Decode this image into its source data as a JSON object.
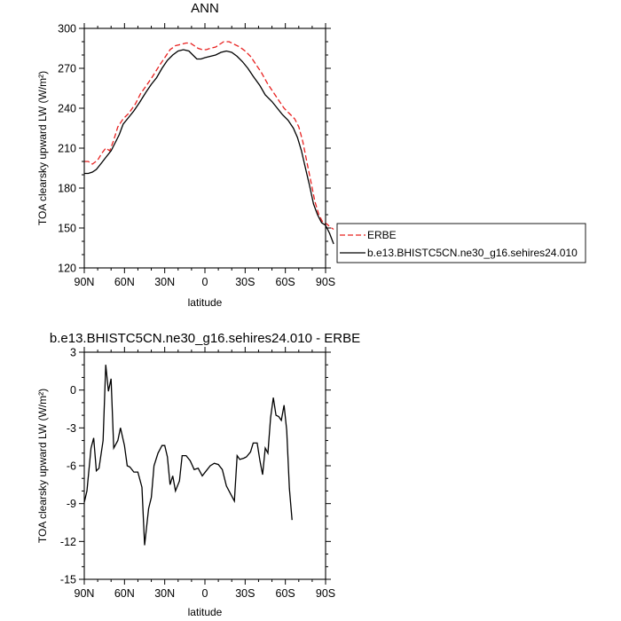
{
  "chart_data": [
    {
      "type": "line",
      "title": "ANN",
      "xlabel": "latitude",
      "ylabel": "TOA clearsky upward LW (W/m²)",
      "xlim": [
        -90,
        90
      ],
      "ylim": [
        120,
        300
      ],
      "x_tick_labels": [
        "90N",
        "60N",
        "30N",
        "0",
        "30S",
        "60S",
        "90S"
      ],
      "y_ticks": [
        120,
        150,
        180,
        210,
        240,
        270,
        300
      ],
      "legend_placement": "right",
      "series": [
        {
          "name": "ERBE",
          "color": "#e8201f",
          "dash": "dashed",
          "points": [
            [
              -90,
              200
            ],
            [
              -87,
              200
            ],
            [
              -84,
              198
            ],
            [
              -80,
              201
            ],
            [
              -77,
              206
            ],
            [
              -74,
              210
            ],
            [
              -71,
              208
            ],
            [
              -68,
              216
            ],
            [
              -65,
              226
            ],
            [
              -61,
              232
            ],
            [
              -57,
              236
            ],
            [
              -52,
              243
            ],
            [
              -48,
              251
            ],
            [
              -43,
              258
            ],
            [
              -39,
              264
            ],
            [
              -34,
              272
            ],
            [
              -30,
              278
            ],
            [
              -26,
              284
            ],
            [
              -22,
              287
            ],
            [
              -18,
              288
            ],
            [
              -14,
              289
            ],
            [
              -11,
              289
            ],
            [
              -8,
              287
            ],
            [
              -5,
              285
            ],
            [
              -2,
              284
            ],
            [
              1,
              284
            ],
            [
              4,
              285
            ],
            [
              8,
              286
            ],
            [
              11,
              288
            ],
            [
              14,
              290
            ],
            [
              18,
              290
            ],
            [
              22,
              288
            ],
            [
              26,
              286
            ],
            [
              30,
              283
            ],
            [
              34,
              279
            ],
            [
              38,
              273
            ],
            [
              42,
              267
            ],
            [
              47,
              258
            ],
            [
              51,
              252
            ],
            [
              55,
              246
            ],
            [
              59,
              240
            ],
            [
              63,
              236
            ],
            [
              67,
              232
            ],
            [
              70,
              226
            ],
            [
              73,
              215
            ],
            [
              76,
              200
            ],
            [
              79,
              185
            ],
            [
              82,
              170
            ],
            [
              85,
              160
            ],
            [
              88,
              154
            ],
            [
              91,
              153
            ],
            [
              93,
              151
            ],
            [
              96,
              149
            ]
          ]
        },
        {
          "name": "b.e13.BHISTC5CN.ne30_g16.sehires24.010",
          "color": "#000000",
          "dash": "solid",
          "points": [
            [
              -90,
              191
            ],
            [
              -87,
              191
            ],
            [
              -84,
              192
            ],
            [
              -81,
              194
            ],
            [
              -77,
              199
            ],
            [
              -74,
              203
            ],
            [
              -70,
              208
            ],
            [
              -67,
              214
            ],
            [
              -64,
              220
            ],
            [
              -61,
              228
            ],
            [
              -57,
              233
            ],
            [
              -53,
              238
            ],
            [
              -49,
              244
            ],
            [
              -44,
              252
            ],
            [
              -40,
              258
            ],
            [
              -36,
              263
            ],
            [
              -32,
              270
            ],
            [
              -28,
              276
            ],
            [
              -24,
              280
            ],
            [
              -20,
              283
            ],
            [
              -16,
              284
            ],
            [
              -12,
              283
            ],
            [
              -9,
              280
            ],
            [
              -6,
              277
            ],
            [
              -3,
              277
            ],
            [
              0,
              278
            ],
            [
              4,
              279
            ],
            [
              8,
              280
            ],
            [
              12,
              282
            ],
            [
              16,
              283
            ],
            [
              20,
              282
            ],
            [
              24,
              279
            ],
            [
              28,
              275
            ],
            [
              32,
              270
            ],
            [
              36,
              264
            ],
            [
              41,
              257
            ],
            [
              45,
              250
            ],
            [
              50,
              245
            ],
            [
              54,
              240
            ],
            [
              58,
              235
            ],
            [
              62,
              231
            ],
            [
              66,
              225
            ],
            [
              69,
              218
            ],
            [
              72,
              208
            ],
            [
              75,
              195
            ],
            [
              78,
              182
            ],
            [
              81,
              168
            ],
            [
              84,
              160
            ],
            [
              87,
              154
            ],
            [
              90,
              152
            ],
            [
              93,
              146
            ],
            [
              96,
              138
            ]
          ]
        }
      ]
    },
    {
      "type": "line",
      "title": "b.e13.BHISTC5CN.ne30_g16.sehires24.010 - ERBE",
      "xlabel": "latitude",
      "ylabel": "TOA clearsky upward LW (W/m²)",
      "xlim": [
        -90,
        90
      ],
      "ylim": [
        -15,
        3
      ],
      "x_tick_labels": [
        "90N",
        "60N",
        "30N",
        "0",
        "30S",
        "60S",
        "90S"
      ],
      "y_ticks": [
        -15,
        -12,
        -9,
        -6,
        -3,
        0,
        3
      ],
      "series": [
        {
          "color": "#000000",
          "dash": "solid",
          "points": [
            [
              -90,
              -8.9
            ],
            [
              -88,
              -8.0
            ],
            [
              -85,
              -4.6
            ],
            [
              -83,
              -3.8
            ],
            [
              -81,
              -6.4
            ],
            [
              -79,
              -6.2
            ],
            [
              -76,
              -4.0
            ],
            [
              -74,
              2.0
            ],
            [
              -72,
              -0.1
            ],
            [
              -70,
              0.9
            ],
            [
              -68,
              -4.6
            ],
            [
              -65,
              -4.0
            ],
            [
              -63,
              -3.0
            ],
            [
              -60,
              -4.4
            ],
            [
              -58,
              -6.0
            ],
            [
              -56,
              -6.1
            ],
            [
              -53,
              -6.5
            ],
            [
              -50,
              -6.5
            ],
            [
              -47,
              -7.7
            ],
            [
              -45,
              -12.3
            ],
            [
              -42,
              -9.4
            ],
            [
              -40,
              -8.5
            ],
            [
              -38,
              -6.0
            ],
            [
              -35,
              -5.0
            ],
            [
              -32,
              -4.4
            ],
            [
              -30,
              -4.4
            ],
            [
              -28,
              -5.3
            ],
            [
              -26,
              -7.5
            ],
            [
              -24,
              -6.8
            ],
            [
              -22,
              -8.0
            ],
            [
              -19,
              -7.2
            ],
            [
              -17,
              -5.2
            ],
            [
              -14,
              -5.2
            ],
            [
              -11,
              -5.6
            ],
            [
              -8,
              -6.3
            ],
            [
              -5,
              -6.2
            ],
            [
              -2,
              -6.8
            ],
            [
              1,
              -6.4
            ],
            [
              4,
              -6.0
            ],
            [
              7,
              -5.8
            ],
            [
              10,
              -5.9
            ],
            [
              13,
              -6.3
            ],
            [
              16,
              -7.6
            ],
            [
              19,
              -8.2
            ],
            [
              22,
              -8.8
            ],
            [
              24,
              -5.2
            ],
            [
              26,
              -5.5
            ],
            [
              29,
              -5.4
            ],
            [
              31,
              -5.3
            ],
            [
              34,
              -4.9
            ],
            [
              36,
              -4.2
            ],
            [
              39,
              -4.2
            ],
            [
              41,
              -5.6
            ],
            [
              43,
              -6.7
            ],
            [
              45,
              -4.6
            ],
            [
              47,
              -5.0
            ],
            [
              49,
              -2.2
            ],
            [
              51,
              -0.6
            ],
            [
              53,
              -2.0
            ],
            [
              55,
              -2.1
            ],
            [
              57,
              -2.4
            ],
            [
              59,
              -1.2
            ],
            [
              61,
              -3.2
            ],
            [
              63,
              -7.8
            ],
            [
              65,
              -10.3
            ]
          ]
        }
      ]
    }
  ]
}
